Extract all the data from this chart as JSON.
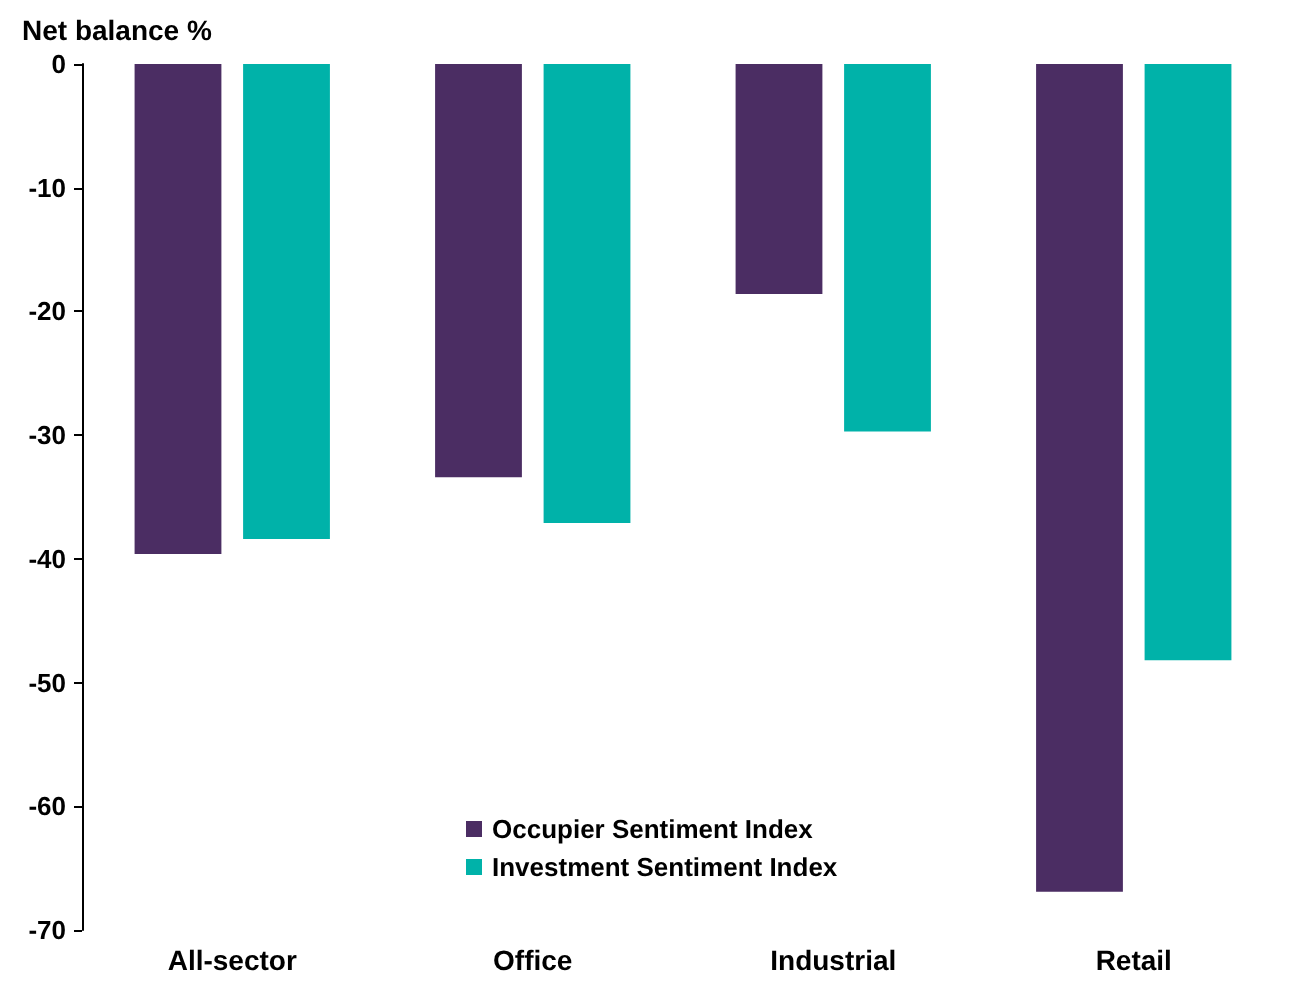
{
  "chart_data": {
    "type": "bar",
    "ylabel": "Net balance %",
    "categories": [
      "All-sector",
      "Office",
      "Industrial",
      "Retail"
    ],
    "series": [
      {
        "name": "Occupier Sentiment Index",
        "color": "#4b2d63",
        "values": [
          -39.6,
          -33.4,
          -18.6,
          -66.9
        ]
      },
      {
        "name": "Investment Sentiment Index",
        "color": "#00b2a9",
        "values": [
          -38.4,
          -37.1,
          -29.7,
          -48.2
        ]
      }
    ],
    "ylim": [
      -70,
      0
    ],
    "yticks": [
      -70,
      -60,
      -50,
      -40,
      -30,
      -20,
      -10,
      0
    ],
    "grid": false,
    "legend": "bottom"
  }
}
